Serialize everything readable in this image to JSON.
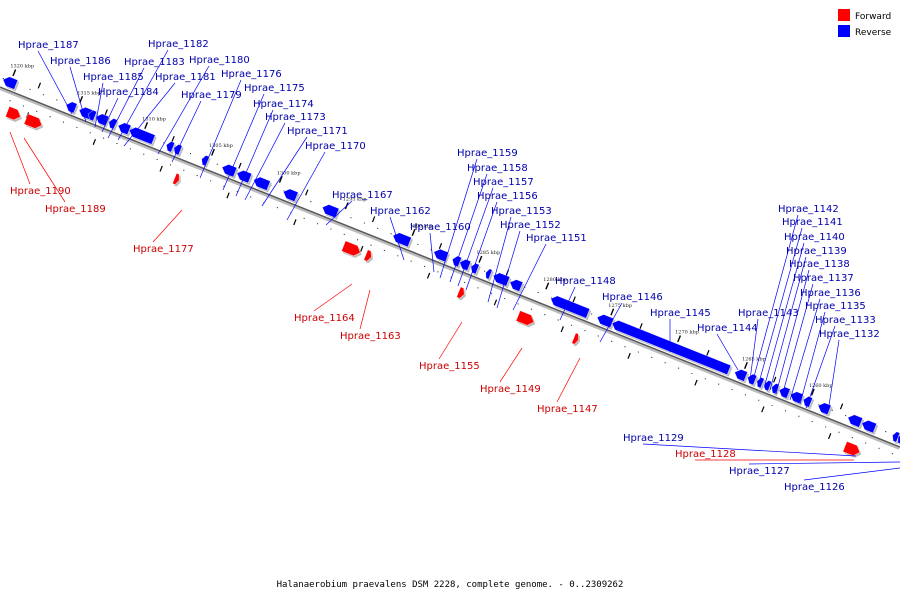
{
  "caption": "Halanaerobium praevalens DSM 2228, complete genome. - 0..2309262",
  "legend": [
    {
      "label": "Forward",
      "color": "#ff0000"
    },
    {
      "label": "Reverse",
      "color": "#0000ff"
    }
  ],
  "colors": {
    "forward": "#ff0000",
    "reverse": "#0000ff",
    "forward_label": "#cc0000",
    "reverse_label": "#0000aa",
    "backbone": "#555555"
  },
  "ticks": [
    {
      "label": "1320 kbp"
    },
    {
      "label": "1315 kbp"
    },
    {
      "label": "1310 kbp"
    },
    {
      "label": "1305 kbp"
    },
    {
      "label": "1300 kbp"
    },
    {
      "label": "1295 kbp"
    },
    {
      "label": "1290 kbp"
    },
    {
      "label": "1285 kbp"
    },
    {
      "label": "1280 kbp"
    },
    {
      "label": "1275 kbp"
    },
    {
      "label": "1270 kbp"
    },
    {
      "label": "1265 kbp"
    },
    {
      "label": "1260 kbp"
    }
  ],
  "genes": [
    {
      "name": "Hprae_1187",
      "strand": "reverse"
    },
    {
      "name": "Hprae_1186",
      "strand": "reverse"
    },
    {
      "name": "Hprae_1185",
      "strand": "reverse"
    },
    {
      "name": "Hprae_1184",
      "strand": "reverse"
    },
    {
      "name": "Hprae_1183",
      "strand": "reverse"
    },
    {
      "name": "Hprae_1182",
      "strand": "reverse"
    },
    {
      "name": "Hprae_1181",
      "strand": "reverse"
    },
    {
      "name": "Hprae_1180",
      "strand": "reverse"
    },
    {
      "name": "Hprae_1179",
      "strand": "reverse"
    },
    {
      "name": "Hprae_1176",
      "strand": "reverse"
    },
    {
      "name": "Hprae_1175",
      "strand": "reverse"
    },
    {
      "name": "Hprae_1174",
      "strand": "reverse"
    },
    {
      "name": "Hprae_1173",
      "strand": "reverse"
    },
    {
      "name": "Hprae_1171",
      "strand": "reverse"
    },
    {
      "name": "Hprae_1170",
      "strand": "reverse"
    },
    {
      "name": "Hprae_1167",
      "strand": "reverse"
    },
    {
      "name": "Hprae_1162",
      "strand": "reverse"
    },
    {
      "name": "Hprae_1160",
      "strand": "reverse"
    },
    {
      "name": "Hprae_1159",
      "strand": "reverse"
    },
    {
      "name": "Hprae_1158",
      "strand": "reverse"
    },
    {
      "name": "Hprae_1157",
      "strand": "reverse"
    },
    {
      "name": "Hprae_1156",
      "strand": "reverse"
    },
    {
      "name": "Hprae_1153",
      "strand": "reverse"
    },
    {
      "name": "Hprae_1152",
      "strand": "reverse"
    },
    {
      "name": "Hprae_1151",
      "strand": "reverse"
    },
    {
      "name": "Hprae_1148",
      "strand": "reverse"
    },
    {
      "name": "Hprae_1146",
      "strand": "reverse"
    },
    {
      "name": "Hprae_1145",
      "strand": "reverse"
    },
    {
      "name": "Hprae_1144",
      "strand": "reverse"
    },
    {
      "name": "Hprae_1143",
      "strand": "reverse"
    },
    {
      "name": "Hprae_1142",
      "strand": "reverse"
    },
    {
      "name": "Hprae_1141",
      "strand": "reverse"
    },
    {
      "name": "Hprae_1140",
      "strand": "reverse"
    },
    {
      "name": "Hprae_1139",
      "strand": "reverse"
    },
    {
      "name": "Hprae_1138",
      "strand": "reverse"
    },
    {
      "name": "Hprae_1137",
      "strand": "reverse"
    },
    {
      "name": "Hprae_1136",
      "strand": "reverse"
    },
    {
      "name": "Hprae_1135",
      "strand": "reverse"
    },
    {
      "name": "Hprae_1133",
      "strand": "reverse"
    },
    {
      "name": "Hprae_1132",
      "strand": "reverse"
    },
    {
      "name": "Hprae_1129",
      "strand": "reverse"
    },
    {
      "name": "Hprae_1127",
      "strand": "reverse"
    },
    {
      "name": "Hprae_1126",
      "strand": "reverse"
    },
    {
      "name": "Hprae_1190",
      "strand": "forward"
    },
    {
      "name": "Hprae_1189",
      "strand": "forward"
    },
    {
      "name": "Hprae_1177",
      "strand": "forward"
    },
    {
      "name": "Hprae_1164",
      "strand": "forward"
    },
    {
      "name": "Hprae_1163",
      "strand": "forward"
    },
    {
      "name": "Hprae_1155",
      "strand": "forward"
    },
    {
      "name": "Hprae_1149",
      "strand": "forward"
    },
    {
      "name": "Hprae_1147",
      "strand": "forward"
    },
    {
      "name": "Hprae_1128",
      "strand": "forward"
    }
  ]
}
